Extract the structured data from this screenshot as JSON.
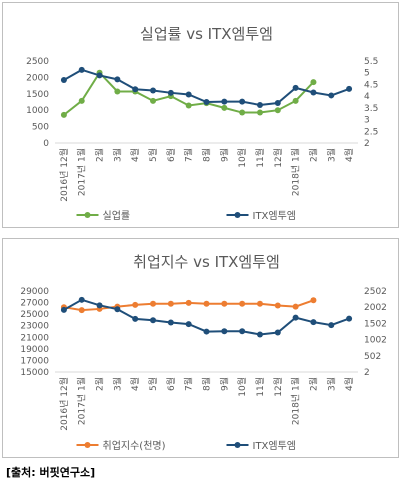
{
  "source": "[출처: 버핏연구소]",
  "chart_data": [
    {
      "type": "line",
      "title": "실업률 vs ITX엠투엠",
      "categories": [
        "2016년 12월",
        "2017년 1월",
        "2월",
        "3월",
        "4월",
        "5월",
        "6월",
        "7월",
        "8월",
        "9월",
        "10월",
        "11월",
        "12월",
        "2018년 1월",
        "2월",
        "3월",
        "4월"
      ],
      "left_axis": {
        "ticks": [
          "0",
          "500",
          "1000",
          "1500",
          "2000",
          "2500"
        ],
        "min": 0,
        "max": 2500
      },
      "right_axis": {
        "ticks": [
          "2",
          "2.5",
          "3",
          "3.5",
          "4",
          "4.5",
          "5",
          "5.5"
        ],
        "min": 2,
        "max": 5.5
      },
      "series": [
        {
          "name": "실업률",
          "axis": "right",
          "color": "#70ad47",
          "values": [
            3.2,
            3.8,
            5.0,
            4.2,
            4.2,
            3.8,
            4.0,
            3.6,
            3.7,
            3.5,
            3.3,
            3.3,
            3.4,
            3.8,
            4.6,
            null,
            null
          ]
        },
        {
          "name": "ITX엠투엠",
          "axis": "left",
          "color": "#1f4e79",
          "values": [
            1920,
            2230,
            2060,
            1940,
            1640,
            1600,
            1530,
            1480,
            1250,
            1260,
            1260,
            1160,
            1220,
            1680,
            1540,
            1450,
            1650
          ]
        }
      ],
      "legend": "bottom"
    },
    {
      "type": "line",
      "title": "취업지수 vs ITX엠투엠",
      "categories": [
        "2016년 12월",
        "2017년 1월",
        "2월",
        "3월",
        "4월",
        "5월",
        "6월",
        "7월",
        "8월",
        "9월",
        "10월",
        "11월",
        "12월",
        "2018년 1월",
        "2월",
        "3월",
        "4월"
      ],
      "left_axis": {
        "ticks": [
          "15000",
          "17000",
          "19000",
          "21000",
          "23000",
          "25000",
          "27000",
          "29000"
        ],
        "min": 15000,
        "max": 29000
      },
      "right_axis": {
        "ticks": [
          "2",
          "502",
          "1002",
          "1502",
          "2002",
          "2502"
        ],
        "min": 2,
        "max": 2502
      },
      "series": [
        {
          "name": "취업지수(천명)",
          "axis": "left",
          "color": "#ed7d31",
          "values": [
            26200,
            25700,
            25900,
            26300,
            26600,
            26800,
            26800,
            26950,
            26800,
            26800,
            26800,
            26800,
            26500,
            26300,
            27400,
            null,
            null
          ]
        },
        {
          "name": "ITX엠투엠",
          "axis": "right",
          "color": "#1f4e79",
          "values": [
            1920,
            2230,
            2060,
            1940,
            1640,
            1600,
            1530,
            1480,
            1250,
            1260,
            1260,
            1160,
            1220,
            1680,
            1540,
            1450,
            1650
          ]
        }
      ],
      "legend": "bottom"
    }
  ]
}
